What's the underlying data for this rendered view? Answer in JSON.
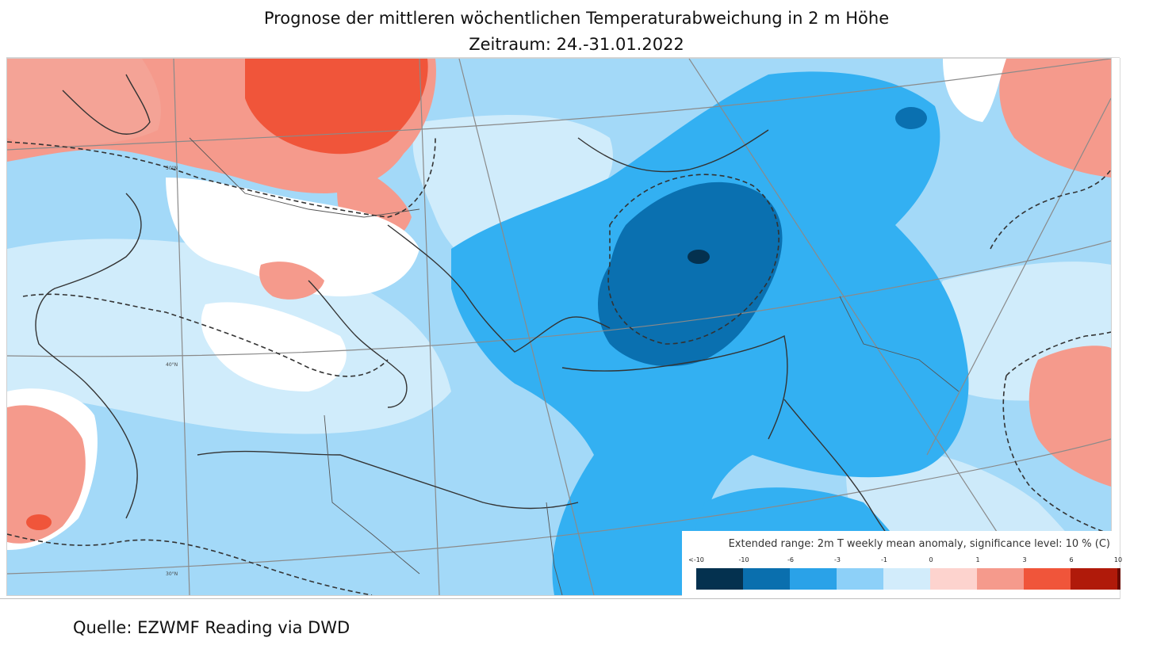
{
  "title_line1": "Prognose der mittleren wöchentlichen Temperaturabweichung in 2 m Höhe",
  "title_line2": "Zeitraum: 24.-31.01.2022",
  "map": {
    "lat_labels": [
      "50°N",
      "40°N",
      "30°N"
    ],
    "legend": {
      "title": "Extended range: 2m T weekly mean anomaly, significance level: 10 % (C)",
      "ticks": [
        "<-10",
        "-10",
        "-6",
        "-3",
        "-1",
        "0",
        "1",
        "3",
        "6",
        "10"
      ],
      "colors": [
        "#04314f",
        "#0a6fae",
        "#2aa2e8",
        "#8dd0f8",
        "#d2ecfb",
        "#fdd3ce",
        "#f59a8c",
        "#f0553a",
        "#b01a0a",
        "#6a0a02"
      ]
    }
  },
  "source": "Quelle: EZWMF Reading via DWD"
}
